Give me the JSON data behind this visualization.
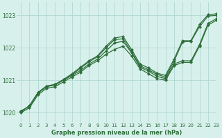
{
  "title": "Graphe pression niveau de la mer (hPa)",
  "bg_color": "#d8f0ec",
  "grid_color": "#b0d8d0",
  "line_color": "#2d6e3a",
  "xlabel_color": "#2d6e3a",
  "xlim": [
    -0.5,
    23
  ],
  "ylim": [
    1019.7,
    1023.4
  ],
  "yticks": [
    1020,
    1021,
    1022,
    1023
  ],
  "xticks": [
    0,
    1,
    2,
    3,
    4,
    5,
    6,
    7,
    8,
    9,
    10,
    11,
    12,
    13,
    14,
    15,
    16,
    17,
    18,
    19,
    20,
    21,
    22,
    23
  ],
  "series": [
    [
      1020.0,
      1020.15,
      1020.55,
      1020.75,
      1020.8,
      1020.95,
      1021.1,
      1021.25,
      1021.45,
      1021.6,
      1021.8,
      1021.95,
      1022.05,
      1021.75,
      1021.35,
      1021.2,
      1021.05,
      1021.0,
      1021.45,
      1021.55,
      1021.55,
      1022.05,
      1022.7,
      1022.85
    ],
    [
      1020.05,
      1020.2,
      1020.6,
      1020.8,
      1020.85,
      1021.0,
      1021.15,
      1021.3,
      1021.5,
      1021.65,
      1021.9,
      1022.15,
      1022.2,
      1021.85,
      1021.4,
      1021.28,
      1021.12,
      1021.05,
      1021.5,
      1021.6,
      1021.6,
      1022.1,
      1022.75,
      1022.9
    ],
    [
      1020.05,
      1020.2,
      1020.62,
      1020.82,
      1020.87,
      1021.02,
      1021.17,
      1021.37,
      1021.57,
      1021.72,
      1022.0,
      1022.25,
      1022.28,
      1021.88,
      1021.45,
      1021.32,
      1021.18,
      1021.1,
      1021.58,
      1022.18,
      1022.2,
      1022.65,
      1022.98,
      1023.0
    ],
    [
      1020.02,
      1020.22,
      1020.62,
      1020.82,
      1020.87,
      1021.02,
      1021.2,
      1021.4,
      1021.6,
      1021.75,
      1022.05,
      1022.3,
      1022.35,
      1021.95,
      1021.5,
      1021.38,
      1021.22,
      1021.15,
      1021.65,
      1022.22,
      1022.22,
      1022.72,
      1023.02,
      1023.05
    ]
  ]
}
